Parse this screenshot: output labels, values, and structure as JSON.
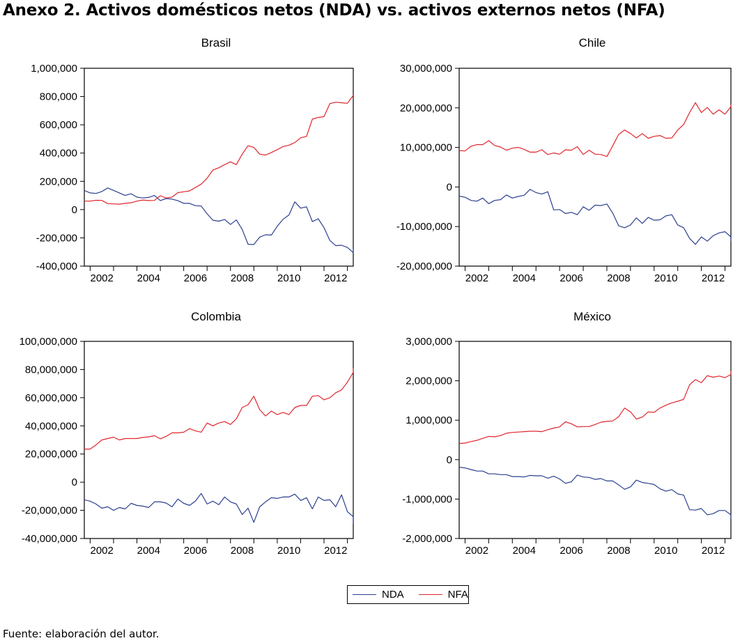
{
  "title": "Anexo 2. Activos domésticos netos (NDA) vs. activos externos netos (NFA)",
  "footer": "Fuente: elaboración del autor.",
  "legend": [
    {
      "name": "NDA",
      "color": "#2b3f8f"
    },
    {
      "name": "NFA",
      "color": "#e0262d"
    }
  ],
  "chart_data": [
    {
      "type": "line",
      "title": "Brasil",
      "x_start": 2001.75,
      "x_step": 0.25,
      "xlim": [
        2001.75,
        2013.25
      ],
      "xticks": [
        2002,
        2004,
        2006,
        2008,
        2010,
        2012
      ],
      "ylim": [
        -400000,
        1000000
      ],
      "yticks": [
        -400000,
        -200000,
        0,
        200000,
        400000,
        600000,
        800000,
        1000000
      ],
      "ytick_labels": [
        "-400,000",
        "-200,000",
        "0",
        "200,000",
        "400,000",
        "600,000",
        "800,000",
        "1,000,000"
      ],
      "series": [
        {
          "name": "NDA",
          "values": [
            135000,
            118000,
            114000,
            128000,
            153000,
            136000,
            118000,
            100000,
            112000,
            88000,
            82000,
            86000,
            100000,
            64000,
            78000,
            74000,
            63000,
            44000,
            44000,
            28000,
            25000,
            -30000,
            -75000,
            -82000,
            -70000,
            -105000,
            -73000,
            -140000,
            -245000,
            -247000,
            -195000,
            -178000,
            -180000,
            -118000,
            -68000,
            -38000,
            55000,
            10000,
            20000,
            -85000,
            -65000,
            -128000,
            -218000,
            -255000,
            -252000,
            -268000,
            -305000,
            -275000
          ]
        },
        {
          "name": "NFA",
          "values": [
            60000,
            60000,
            66000,
            65000,
            42000,
            40000,
            38000,
            44000,
            48000,
            60000,
            68000,
            64000,
            65000,
            98000,
            82000,
            88000,
            120000,
            126000,
            132000,
            156000,
            180000,
            222000,
            280000,
            296000,
            318000,
            338000,
            318000,
            392000,
            452000,
            440000,
            392000,
            386000,
            404000,
            424000,
            446000,
            456000,
            474000,
            508000,
            518000,
            640000,
            652000,
            658000,
            750000,
            760000,
            756000,
            752000,
            808000,
            812000
          ]
        }
      ]
    },
    {
      "type": "line",
      "title": "Chile",
      "x_start": 2001.75,
      "x_step": 0.25,
      "xlim": [
        2001.75,
        2013.25
      ],
      "xticks": [
        2002,
        2004,
        2006,
        2008,
        2010,
        2012
      ],
      "ylim": [
        -20000000,
        30000000
      ],
      "yticks": [
        -20000000,
        -10000000,
        0,
        10000000,
        20000000,
        30000000
      ],
      "ytick_labels": [
        "-20,000,000",
        "-10,000,000",
        "0",
        "10,000,000",
        "20,000,000",
        "30,000,000"
      ],
      "series": [
        {
          "name": "NDA",
          "values": [
            -2300000,
            -2600000,
            -3400000,
            -3600000,
            -2800000,
            -4200000,
            -3400000,
            -3200000,
            -2000000,
            -2800000,
            -2400000,
            -2100000,
            -600000,
            -1400000,
            -1800000,
            -1200000,
            -5800000,
            -5700000,
            -6700000,
            -6400000,
            -7000000,
            -5000000,
            -5900000,
            -4600000,
            -4700000,
            -4300000,
            -6600000,
            -9800000,
            -10300000,
            -9600000,
            -7800000,
            -9200000,
            -7700000,
            -8400000,
            -8300000,
            -7300000,
            -7000000,
            -9600000,
            -10300000,
            -13000000,
            -14500000,
            -12600000,
            -13700000,
            -12300000,
            -11600000,
            -11300000,
            -12600000,
            -13700000
          ]
        },
        {
          "name": "NFA",
          "values": [
            9200000,
            9100000,
            10300000,
            10700000,
            10700000,
            11700000,
            10500000,
            10100000,
            9300000,
            9800000,
            10000000,
            9500000,
            8800000,
            8800000,
            9400000,
            8200000,
            8600000,
            8300000,
            9400000,
            9300000,
            10200000,
            8200000,
            9300000,
            8300000,
            8200000,
            7700000,
            10400000,
            13300000,
            14400000,
            13500000,
            12400000,
            13500000,
            12300000,
            12800000,
            13000000,
            12300000,
            12400000,
            14400000,
            15800000,
            18800000,
            21300000,
            18800000,
            20100000,
            18400000,
            19500000,
            18400000,
            20300000,
            20800000
          ]
        }
      ]
    },
    {
      "type": "line",
      "title": "Colombia",
      "x_start": 2001.75,
      "x_step": 0.25,
      "xlim": [
        2001.75,
        2013.25
      ],
      "xticks": [
        2002,
        2004,
        2006,
        2008,
        2010,
        2012
      ],
      "ylim": [
        -40000000,
        100000000
      ],
      "yticks": [
        -40000000,
        -20000000,
        0,
        20000000,
        40000000,
        60000000,
        80000000,
        100000000
      ],
      "ytick_labels": [
        "-40,000,000",
        "-20,000,000",
        "0",
        "20,000,000",
        "40,000,000",
        "60,000,000",
        "80,000,000",
        "100,000,000"
      ],
      "series": [
        {
          "name": "NDA",
          "values": [
            -12500000,
            -13500000,
            -15500000,
            -18500000,
            -17500000,
            -20000000,
            -18000000,
            -19000000,
            -15000000,
            -16500000,
            -17000000,
            -18000000,
            -14000000,
            -14000000,
            -14800000,
            -17500000,
            -12000000,
            -15000000,
            -16500000,
            -13500000,
            -8000000,
            -15500000,
            -13500000,
            -16000000,
            -10500000,
            -14000000,
            -15500000,
            -23000000,
            -18500000,
            -28500000,
            -17500000,
            -14000000,
            -11000000,
            -11500000,
            -10500000,
            -10500000,
            -8500000,
            -13000000,
            -11000000,
            -19000000,
            -10500000,
            -13000000,
            -12500000,
            -17500000,
            -9000000,
            -21000000,
            -24500000,
            -29500000
          ]
        },
        {
          "name": "NFA",
          "values": [
            23500000,
            23500000,
            26500000,
            30000000,
            31000000,
            32000000,
            30000000,
            31000000,
            31000000,
            31000000,
            31800000,
            32200000,
            33000000,
            30800000,
            32500000,
            35000000,
            35000000,
            35500000,
            38000000,
            36500000,
            35500000,
            42000000,
            40000000,
            42000000,
            43000000,
            41000000,
            45000000,
            53000000,
            55000000,
            61000000,
            51500000,
            47000000,
            50500000,
            48000000,
            49500000,
            48000000,
            53000000,
            54500000,
            54500000,
            61000000,
            61500000,
            58500000,
            60000000,
            63500000,
            65500000,
            71000000,
            78000000,
            81000000
          ]
        }
      ]
    },
    {
      "type": "line",
      "title": "México",
      "x_start": 2001.75,
      "x_step": 0.25,
      "xlim": [
        2001.75,
        2013.25
      ],
      "xticks": [
        2002,
        2004,
        2006,
        2008,
        2010,
        2012
      ],
      "ylim": [
        -2000000,
        3000000
      ],
      "yticks": [
        -2000000,
        -1000000,
        0,
        1000000,
        2000000,
        3000000
      ],
      "ytick_labels": [
        "-2,000,000",
        "-1,000,000",
        "0",
        "1,000,000",
        "2,000,000",
        "3,000,000"
      ],
      "series": [
        {
          "name": "NDA",
          "values": [
            -190000,
            -210000,
            -250000,
            -290000,
            -290000,
            -360000,
            -360000,
            -380000,
            -380000,
            -430000,
            -430000,
            -440000,
            -400000,
            -410000,
            -410000,
            -470000,
            -420000,
            -490000,
            -600000,
            -560000,
            -390000,
            -440000,
            -450000,
            -500000,
            -480000,
            -540000,
            -540000,
            -640000,
            -750000,
            -690000,
            -520000,
            -580000,
            -600000,
            -630000,
            -740000,
            -800000,
            -760000,
            -870000,
            -900000,
            -1270000,
            -1280000,
            -1240000,
            -1400000,
            -1370000,
            -1290000,
            -1290000,
            -1400000,
            -1500000
          ]
        },
        {
          "name": "NFA",
          "values": [
            410000,
            420000,
            460000,
            490000,
            540000,
            590000,
            580000,
            610000,
            670000,
            690000,
            700000,
            710000,
            720000,
            720000,
            710000,
            760000,
            800000,
            830000,
            960000,
            910000,
            830000,
            840000,
            840000,
            890000,
            950000,
            970000,
            980000,
            1090000,
            1310000,
            1210000,
            1030000,
            1080000,
            1210000,
            1200000,
            1310000,
            1380000,
            1440000,
            1480000,
            1530000,
            1900000,
            2030000,
            1950000,
            2130000,
            2090000,
            2120000,
            2080000,
            2160000,
            2250000
          ]
        }
      ]
    }
  ]
}
